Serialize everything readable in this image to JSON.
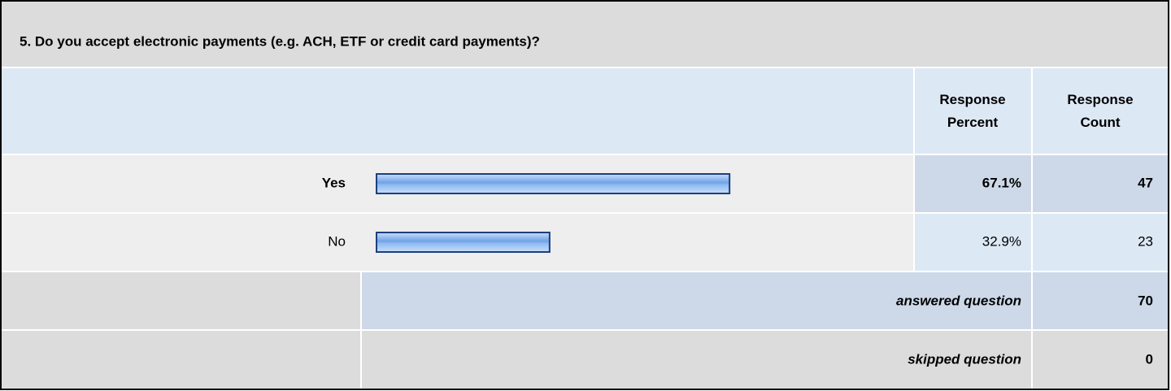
{
  "chart_data": {
    "type": "bar",
    "title": "5. Do you accept electronic payments (e.g. ACH, ETF or credit card payments)?",
    "columns": [
      "Response Percent",
      "Response Count"
    ],
    "categories": [
      "Yes",
      "No"
    ],
    "values": [
      67.1,
      32.9
    ],
    "value_labels": [
      "67.1%",
      "32.9%"
    ],
    "counts": [
      47,
      23
    ],
    "xlim": [
      0,
      100
    ],
    "color": "#7fb0ee",
    "summary": [
      {
        "label": "answered question",
        "value": 70
      },
      {
        "label": "skipped question",
        "value": 0
      }
    ]
  }
}
